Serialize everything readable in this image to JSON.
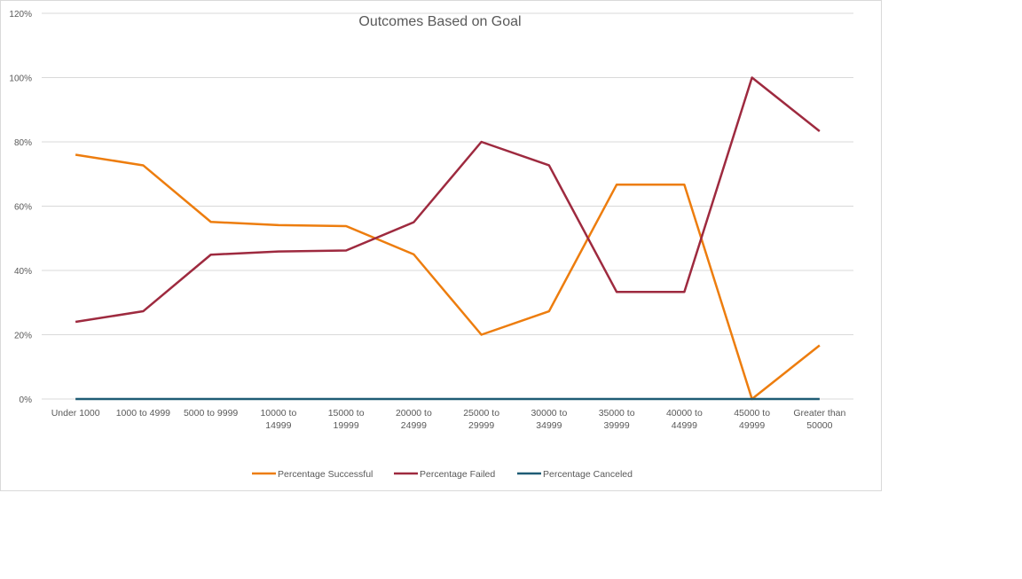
{
  "chart_data": {
    "type": "line",
    "title": "Outcomes Based on Goal",
    "xlabel": "",
    "ylabel": "",
    "ylim": [
      0,
      1.2
    ],
    "yticks": [
      0,
      0.2,
      0.4,
      0.6,
      0.8,
      1.0,
      1.2
    ],
    "ytick_labels": [
      "0%",
      "20%",
      "40%",
      "60%",
      "80%",
      "100%",
      "120%"
    ],
    "grid": true,
    "legend_position": "bottom",
    "categories": [
      [
        "Under 1000"
      ],
      [
        "1000 to 4999"
      ],
      [
        "5000 to 9999"
      ],
      [
        "10000 to",
        "14999"
      ],
      [
        "15000 to",
        "19999"
      ],
      [
        "20000 to",
        "24999"
      ],
      [
        "25000 to",
        "29999"
      ],
      [
        "30000 to",
        "34999"
      ],
      [
        "35000 to",
        "39999"
      ],
      [
        "40000 to",
        "44999"
      ],
      [
        "45000 to",
        "49999"
      ],
      [
        "Greater than",
        "50000"
      ]
    ],
    "series": [
      {
        "name": "Percentage Successful",
        "color": "#ED7D0E",
        "values": [
          0.76,
          0.727,
          0.551,
          0.541,
          0.538,
          0.45,
          0.2,
          0.273,
          0.667,
          0.667,
          0.0,
          0.167
        ]
      },
      {
        "name": "Percentage Failed",
        "color": "#9E2A3F",
        "values": [
          0.24,
          0.273,
          0.449,
          0.459,
          0.462,
          0.55,
          0.8,
          0.727,
          0.333,
          0.333,
          1.0,
          0.833
        ]
      },
      {
        "name": "Percentage Canceled",
        "color": "#1F5C75",
        "values": [
          0,
          0,
          0,
          0,
          0,
          0,
          0,
          0,
          0,
          0,
          0,
          0
        ]
      }
    ]
  }
}
